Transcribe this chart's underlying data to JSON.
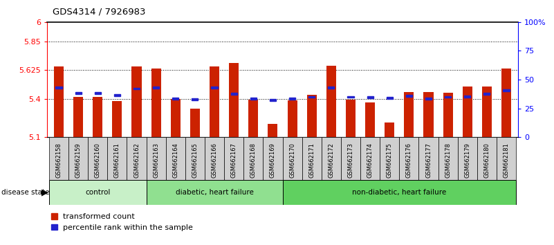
{
  "title": "GDS4314 / 7926983",
  "samples": [
    "GSM662158",
    "GSM662159",
    "GSM662160",
    "GSM662161",
    "GSM662162",
    "GSM662163",
    "GSM662164",
    "GSM662165",
    "GSM662166",
    "GSM662167",
    "GSM662168",
    "GSM662169",
    "GSM662170",
    "GSM662171",
    "GSM662172",
    "GSM662173",
    "GSM662174",
    "GSM662175",
    "GSM662176",
    "GSM662177",
    "GSM662178",
    "GSM662179",
    "GSM662180",
    "GSM662181"
  ],
  "red_values": [
    5.655,
    5.415,
    5.415,
    5.385,
    5.655,
    5.635,
    5.4,
    5.325,
    5.655,
    5.68,
    5.395,
    5.205,
    5.39,
    5.43,
    5.66,
    5.395,
    5.37,
    5.215,
    5.455,
    5.455,
    5.445,
    5.495,
    5.495,
    5.635
  ],
  "blue_values": [
    5.49,
    5.445,
    5.445,
    5.43,
    5.48,
    5.49,
    5.4,
    5.395,
    5.49,
    5.44,
    5.4,
    5.39,
    5.4,
    5.415,
    5.49,
    5.415,
    5.41,
    5.405,
    5.425,
    5.4,
    5.415,
    5.42,
    5.44,
    5.465
  ],
  "ymin": 5.1,
  "ymax": 6.0,
  "yticks": [
    5.1,
    5.4,
    5.625,
    5.85,
    6.0
  ],
  "ytick_labels": [
    "5.1",
    "5.4",
    "5.625",
    "5.85",
    "6"
  ],
  "right_yticks": [
    0,
    25,
    50,
    75,
    100
  ],
  "right_ytick_labels": [
    "0",
    "25",
    "50",
    "75",
    "100%"
  ],
  "bar_color": "#cc2200",
  "square_color": "#2222cc",
  "background_color": "#ffffff",
  "grid_lines": [
    5.4,
    5.625,
    5.85
  ],
  "group_defs": [
    {
      "label": "control",
      "start": 0,
      "end": 5,
      "color": "#c8f0c8"
    },
    {
      "label": "diabetic, heart failure",
      "start": 5,
      "end": 12,
      "color": "#90e090"
    },
    {
      "label": "non-diabetic, heart failure",
      "start": 12,
      "end": 24,
      "color": "#60d060"
    }
  ],
  "label_bg_color": "#c0c0c0",
  "bar_width": 0.5
}
